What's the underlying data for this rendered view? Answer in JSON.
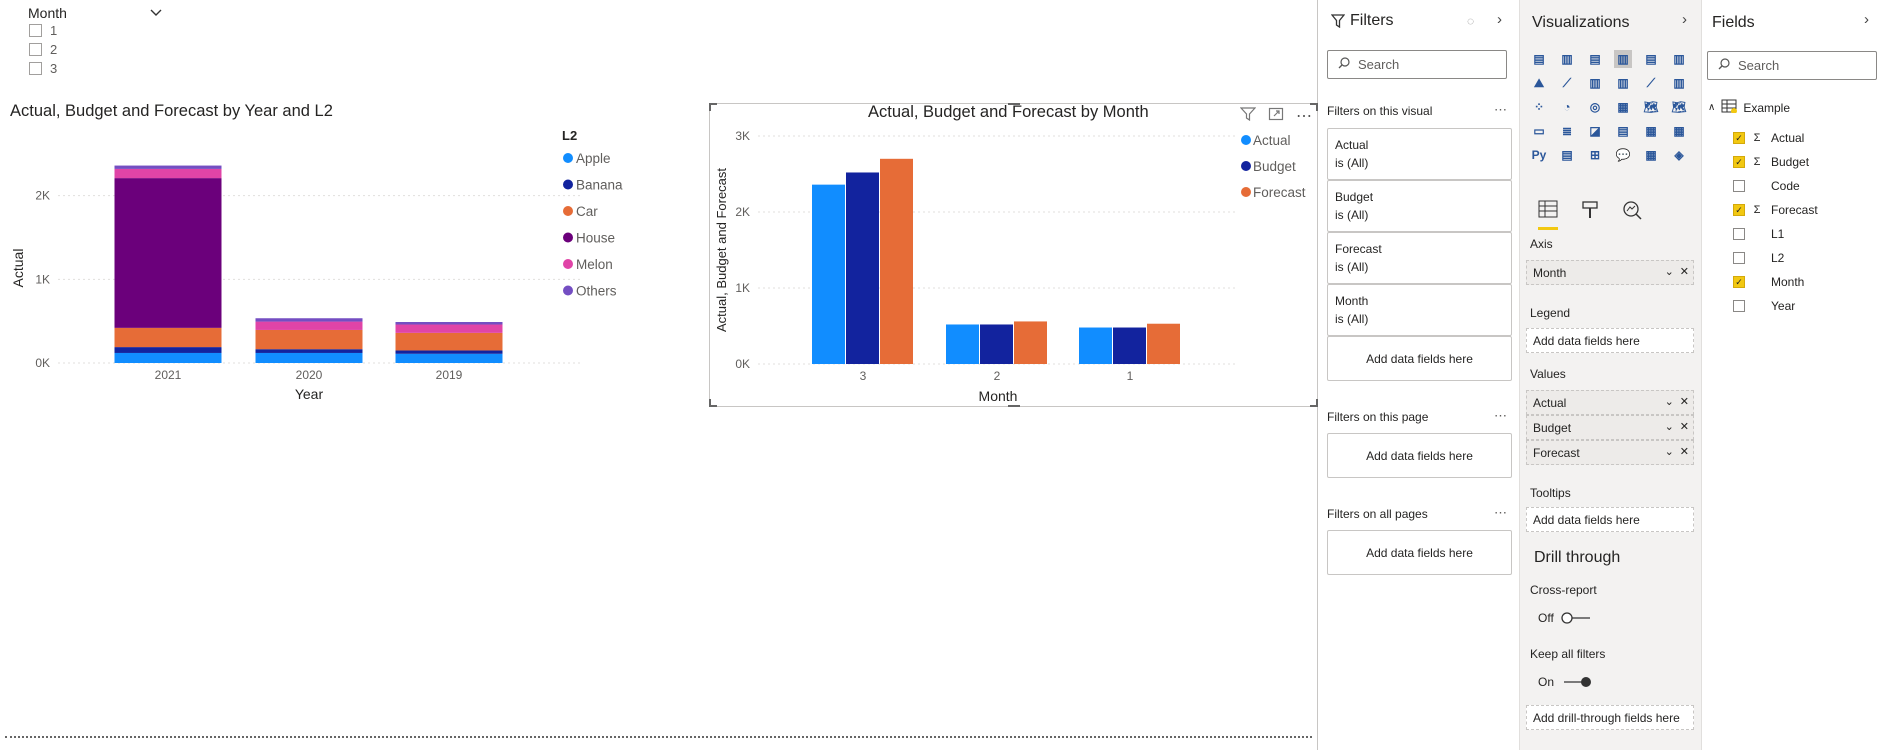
{
  "slicer": {
    "title": "Month",
    "items": [
      "1",
      "2",
      "3"
    ]
  },
  "chart1": {
    "title": "Actual, Budget and Forecast by Year and L2",
    "legend_title": "L2",
    "legend": [
      "Apple",
      "Banana",
      "Car",
      "House",
      "Melon",
      "Others"
    ],
    "yticks": [
      "0K",
      "1K",
      "2K"
    ],
    "ylabel": "Actual",
    "xlabel": "Year"
  },
  "chart2": {
    "title": "Actual, Budget and Forecast by Month",
    "legend": [
      "Actual",
      "Budget",
      "Forecast"
    ],
    "yticks": [
      "0K",
      "1K",
      "2K",
      "3K"
    ],
    "ylabel": "Actual, Budget and Forecast",
    "xlabel": "Month"
  },
  "chart_data": [
    {
      "type": "bar",
      "stacked": true,
      "title": "Actual, Budget and Forecast by Year and L2",
      "xlabel": "Year",
      "ylabel": "Actual",
      "categories": [
        "2021",
        "2020",
        "2019"
      ],
      "ylim": [
        0,
        2500
      ],
      "legend_position": "right",
      "series": [
        {
          "name": "Apple",
          "color": "#118DFF",
          "values": [
            120,
            120,
            110
          ]
        },
        {
          "name": "Banana",
          "color": "#12239E",
          "values": [
            70,
            45,
            40
          ]
        },
        {
          "name": "Car",
          "color": "#E66C37",
          "values": [
            230,
            230,
            210
          ]
        },
        {
          "name": "House",
          "color": "#6B007B",
          "values": [
            1790,
            0,
            0
          ]
        },
        {
          "name": "Melon",
          "color": "#E044A7",
          "values": [
            110,
            100,
            100
          ]
        },
        {
          "name": "Others",
          "color": "#744EC2",
          "values": [
            40,
            40,
            30
          ]
        }
      ]
    },
    {
      "type": "bar",
      "title": "Actual, Budget and Forecast by Month",
      "xlabel": "Month",
      "ylabel": "Actual, Budget and Forecast",
      "categories": [
        "3",
        "2",
        "1"
      ],
      "ylim": [
        0,
        3000
      ],
      "legend_position": "right",
      "series": [
        {
          "name": "Actual",
          "color": "#118DFF",
          "values": [
            2360,
            520,
            480
          ]
        },
        {
          "name": "Budget",
          "color": "#12239E",
          "values": [
            2520,
            520,
            480
          ]
        },
        {
          "name": "Forecast",
          "color": "#E66C37",
          "values": [
            2700,
            560,
            530
          ]
        }
      ]
    }
  ],
  "filters": {
    "title": "Filters",
    "search_placeholder": "Search",
    "on_visual_label": "Filters on this visual",
    "visual_cards": [
      {
        "name": "Actual",
        "state": "is (All)"
      },
      {
        "name": "Budget",
        "state": "is (All)"
      },
      {
        "name": "Forecast",
        "state": "is (All)"
      },
      {
        "name": "Month",
        "state": "is (All)"
      }
    ],
    "add_fields": "Add data fields here",
    "on_page_label": "Filters on this page",
    "on_all_label": "Filters on all pages"
  },
  "viz": {
    "title": "Visualizations",
    "axis_label": "Axis",
    "axis_field": "Month",
    "legend_label": "Legend",
    "add_fields": "Add data fields here",
    "values_label": "Values",
    "values_fields": [
      "Actual",
      "Budget",
      "Forecast"
    ],
    "tooltips_label": "Tooltips",
    "drill_title": "Drill through",
    "cross_report": "Cross-report",
    "off": "Off",
    "keep_filters": "Keep all filters",
    "on": "On",
    "add_drill": "Add drill-through fields here"
  },
  "fields": {
    "title": "Fields",
    "search_placeholder": "Search",
    "table": "Example",
    "items": [
      {
        "name": "Actual",
        "checked": true,
        "sigma": true
      },
      {
        "name": "Budget",
        "checked": true,
        "sigma": true
      },
      {
        "name": "Code",
        "checked": false,
        "sigma": false
      },
      {
        "name": "Forecast",
        "checked": true,
        "sigma": true
      },
      {
        "name": "L1",
        "checked": false,
        "sigma": false
      },
      {
        "name": "L2",
        "checked": false,
        "sigma": false
      },
      {
        "name": "Month",
        "checked": true,
        "sigma": false
      },
      {
        "name": "Year",
        "checked": false,
        "sigma": false
      }
    ]
  }
}
